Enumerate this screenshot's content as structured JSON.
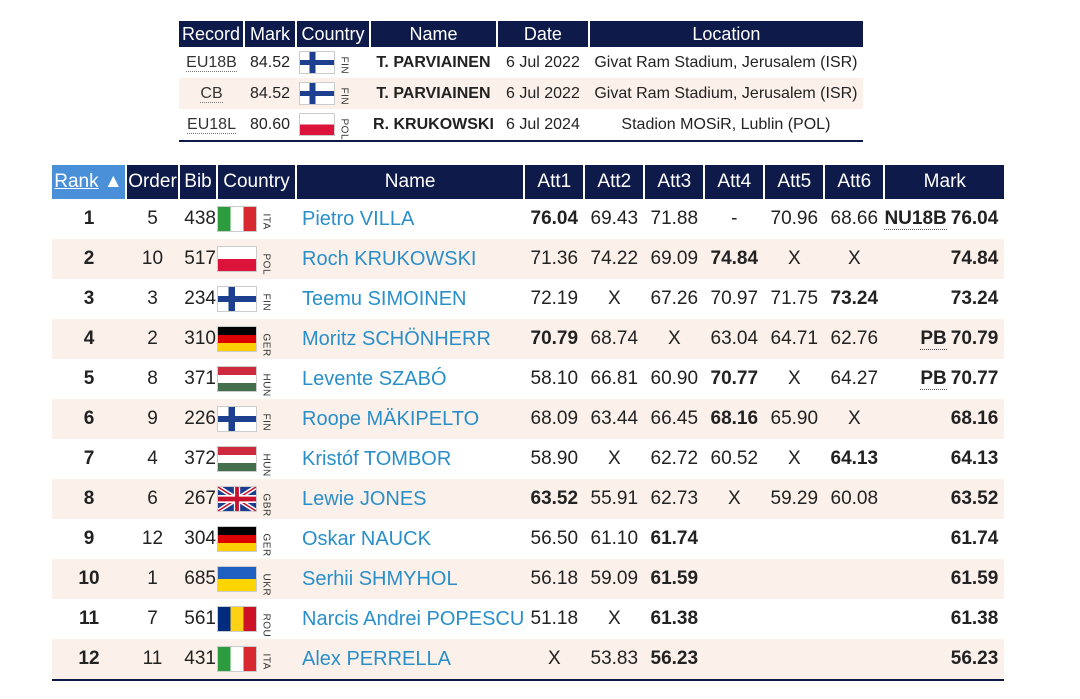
{
  "records": {
    "headers": {
      "record": "Record",
      "mark": "Mark",
      "country": "Country",
      "name": "Name",
      "date": "Date",
      "location": "Location"
    },
    "rows": [
      {
        "code": "EU18B",
        "mark": "84.52",
        "flag": "fin",
        "ccode": "FIN",
        "name": "T. PARVIAINEN",
        "date": "6 Jul 2022",
        "location": "Givat Ram Stadium, Jerusalem (ISR)"
      },
      {
        "code": "CB",
        "mark": "84.52",
        "flag": "fin",
        "ccode": "FIN",
        "name": "T. PARVIAINEN",
        "date": "6 Jul 2022",
        "location": "Givat Ram Stadium, Jerusalem (ISR)"
      },
      {
        "code": "EU18L",
        "mark": "80.60",
        "flag": "pol",
        "ccode": "POL",
        "name": "R. KRUKOWSKI",
        "date": "6 Jul 2024",
        "location": "Stadion MOSiR, Lublin (POL)"
      }
    ]
  },
  "results": {
    "headers": {
      "rank": "Rank",
      "sort_arrow": "▲",
      "order": "Order",
      "bib": "Bib",
      "country": "Country",
      "name": "Name",
      "att1": "Att1",
      "att2": "Att2",
      "att3": "Att3",
      "att4": "Att4",
      "att5": "Att5",
      "att6": "Att6",
      "mark": "Mark"
    },
    "rows": [
      {
        "rank": "1",
        "order": "5",
        "bib": "438",
        "flag": "ita",
        "ccode": "ITA",
        "name": "Pietro VILLA",
        "att": [
          "76.04",
          "69.43",
          "71.88",
          "-",
          "70.96",
          "68.66"
        ],
        "best": 0,
        "badge": "NU18B",
        "mark": "76.04"
      },
      {
        "rank": "2",
        "order": "10",
        "bib": "517",
        "flag": "pol",
        "ccode": "POL",
        "name": "Roch KRUKOWSKI",
        "att": [
          "71.36",
          "74.22",
          "69.09",
          "74.84",
          "X",
          "X"
        ],
        "best": 3,
        "badge": "",
        "mark": "74.84"
      },
      {
        "rank": "3",
        "order": "3",
        "bib": "234",
        "flag": "fin",
        "ccode": "FIN",
        "name": "Teemu SIMOINEN",
        "att": [
          "72.19",
          "X",
          "67.26",
          "70.97",
          "71.75",
          "73.24"
        ],
        "best": 5,
        "badge": "",
        "mark": "73.24"
      },
      {
        "rank": "4",
        "order": "2",
        "bib": "310",
        "flag": "ger",
        "ccode": "GER",
        "name": "Moritz SCHÖNHERR",
        "att": [
          "70.79",
          "68.74",
          "X",
          "63.04",
          "64.71",
          "62.76"
        ],
        "best": 0,
        "badge": "PB",
        "mark": "70.79"
      },
      {
        "rank": "5",
        "order": "8",
        "bib": "371",
        "flag": "hun",
        "ccode": "HUN",
        "name": "Levente SZABÓ",
        "att": [
          "58.10",
          "66.81",
          "60.90",
          "70.77",
          "X",
          "64.27"
        ],
        "best": 3,
        "badge": "PB",
        "mark": "70.77"
      },
      {
        "rank": "6",
        "order": "9",
        "bib": "226",
        "flag": "fin",
        "ccode": "FIN",
        "name": "Roope MÄKIPELTO",
        "att": [
          "68.09",
          "63.44",
          "66.45",
          "68.16",
          "65.90",
          "X"
        ],
        "best": 3,
        "badge": "",
        "mark": "68.16"
      },
      {
        "rank": "7",
        "order": "4",
        "bib": "372",
        "flag": "hun",
        "ccode": "HUN",
        "name": "Kristóf TOMBOR",
        "att": [
          "58.90",
          "X",
          "62.72",
          "60.52",
          "X",
          "64.13"
        ],
        "best": 5,
        "badge": "",
        "mark": "64.13"
      },
      {
        "rank": "8",
        "order": "6",
        "bib": "267",
        "flag": "gbr",
        "ccode": "GBR",
        "name": "Lewie JONES",
        "att": [
          "63.52",
          "55.91",
          "62.73",
          "X",
          "59.29",
          "60.08"
        ],
        "best": 0,
        "badge": "",
        "mark": "63.52"
      },
      {
        "rank": "9",
        "order": "12",
        "bib": "304",
        "flag": "ger",
        "ccode": "GER",
        "name": "Oskar NAUCK",
        "att": [
          "56.50",
          "61.10",
          "61.74",
          "",
          "",
          ""
        ],
        "best": 2,
        "badge": "",
        "mark": "61.74"
      },
      {
        "rank": "10",
        "order": "1",
        "bib": "685",
        "flag": "ukr",
        "ccode": "UKR",
        "name": "Serhii SHMYHOL",
        "att": [
          "56.18",
          "59.09",
          "61.59",
          "",
          "",
          ""
        ],
        "best": 2,
        "badge": "",
        "mark": "61.59"
      },
      {
        "rank": "11",
        "order": "7",
        "bib": "561",
        "flag": "rou",
        "ccode": "ROU",
        "name": "Narcis Andrei POPESCU",
        "att": [
          "51.18",
          "X",
          "61.38",
          "",
          "",
          ""
        ],
        "best": 2,
        "badge": "",
        "mark": "61.38"
      },
      {
        "rank": "12",
        "order": "11",
        "bib": "431",
        "flag": "ita",
        "ccode": "ITA",
        "name": "Alex PERRELLA",
        "att": [
          "X",
          "53.83",
          "56.23",
          "",
          "",
          ""
        ],
        "best": 2,
        "badge": "",
        "mark": "56.23"
      }
    ]
  }
}
